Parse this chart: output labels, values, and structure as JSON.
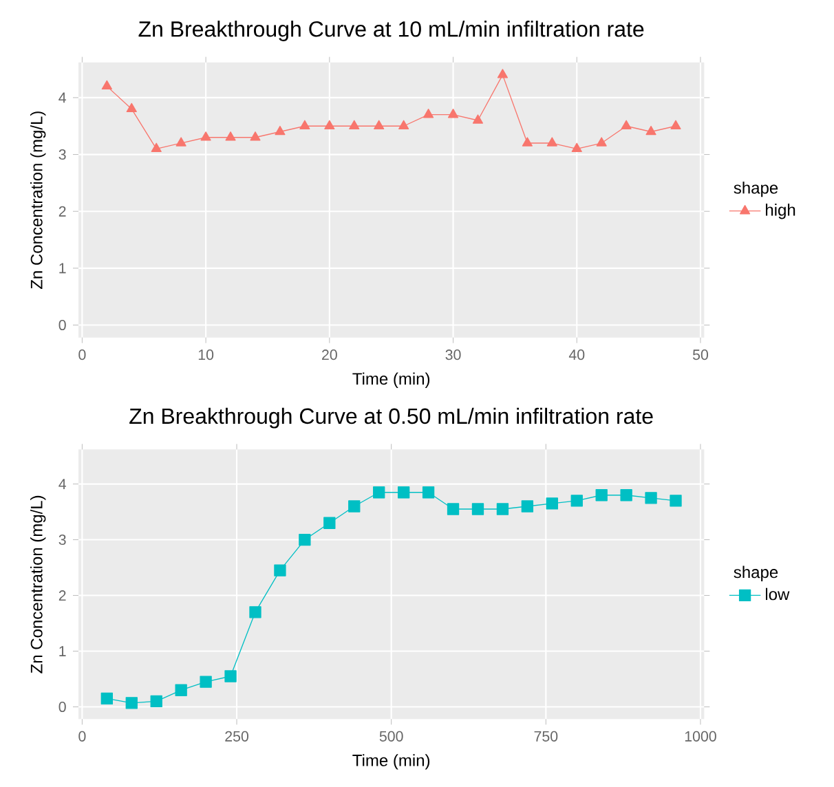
{
  "chart_data": [
    {
      "type": "line",
      "title": "Zn Breakthrough Curve at 10 mL/min infiltration rate",
      "xlabel": "Time (min)",
      "ylabel": "Zn Concentration (mg/L)",
      "legend_title": "shape",
      "x": [
        2,
        4,
        6,
        8,
        10,
        12,
        14,
        16,
        18,
        20,
        22,
        24,
        26,
        28,
        30,
        32,
        34,
        36,
        38,
        40,
        42,
        44,
        46,
        48
      ],
      "series": [
        {
          "name": "high",
          "color": "#f8766d",
          "values": [
            4.2,
            3.8,
            3.1,
            3.2,
            3.3,
            3.3,
            3.3,
            3.4,
            3.5,
            3.5,
            3.5,
            3.5,
            3.5,
            3.7,
            3.7,
            3.6,
            4.4,
            3.2,
            3.2,
            3.1,
            3.2,
            3.5,
            3.4,
            3.5
          ]
        }
      ],
      "xlim": [
        -0.3,
        50.3
      ],
      "xticks": [
        0,
        10,
        20,
        30,
        40,
        50
      ],
      "ylim": [
        -0.22,
        4.62
      ],
      "yticks": [
        0,
        1,
        2,
        3,
        4
      ],
      "grid": true,
      "legend": "right",
      "marker": "triangle",
      "line_style": "solid"
    },
    {
      "type": "line",
      "title": "Zn Breakthrough Curve at 0.50 mL/min infiltration rate",
      "xlabel": "Time (min)",
      "ylabel": "Zn Concentration (mg/L)",
      "legend_title": "shape",
      "x": [
        40,
        80,
        120,
        160,
        200,
        240,
        280,
        320,
        360,
        400,
        440,
        480,
        520,
        560,
        600,
        640,
        680,
        720,
        760,
        800,
        840,
        880,
        920,
        960
      ],
      "series": [
        {
          "name": "low",
          "color": "#00bfc4",
          "values": [
            0.15,
            0.07,
            0.1,
            0.3,
            0.45,
            0.55,
            1.7,
            2.45,
            3.0,
            3.3,
            3.6,
            3.85,
            3.85,
            3.85,
            3.55,
            3.55,
            3.55,
            3.6,
            3.65,
            3.7,
            3.8,
            3.8,
            3.75,
            3.7
          ]
        }
      ],
      "xlim": [
        -6,
        1006
      ],
      "xticks": [
        0,
        250,
        500,
        750,
        1000
      ],
      "ylim": [
        -0.22,
        4.62
      ],
      "yticks": [
        0,
        1,
        2,
        3,
        4
      ],
      "grid": true,
      "legend": "right",
      "marker": "square",
      "line_style": "solid"
    }
  ]
}
